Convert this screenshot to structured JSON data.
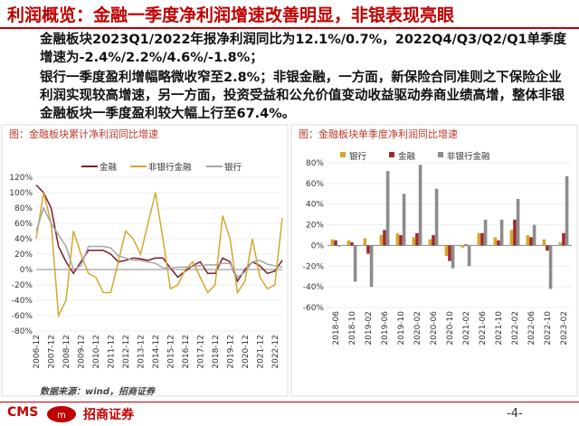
{
  "header": {
    "title": "利润概览：金融一季度净利润增速改善明显，非银表现亮眼"
  },
  "body": {
    "paragraphs": [
      "金融板块2023Q1/2022年报净利润同比为12.1%/0.7%，2022Q4/Q3/Q2/Q1单季度增速为-2.4%/2.2%/4.6%/-1.8%；",
      "银行一季度盈利增幅略微收窄至2.8%；非银金融，一方面，新保险合同准则之下保险企业利润实现较高增速，另一方面，投资受益和公允价值变动收益驱动券商业绩高增，整体非银金融板块一季度盈利较大幅上行至67.4%。"
    ]
  },
  "chart_data": [
    {
      "type": "line",
      "title": "图：金融板块累计净利润同比增速",
      "legend": "top",
      "categories": [
        "2006-12",
        null,
        "2007-12",
        null,
        "2008-12",
        null,
        "2009-12",
        null,
        "2010-12",
        null,
        "2011-12",
        null,
        "2012-12",
        null,
        "2013-12",
        null,
        "2014-12",
        null,
        "2015-12",
        null,
        "2016-12",
        null,
        "2017-12",
        null,
        "2018-12",
        null,
        "2019-12",
        null,
        "2020-12",
        null,
        "2021-12",
        null,
        "2022-12",
        null
      ],
      "series": [
        {
          "name": "金融",
          "color": "#7b1c2a",
          "values": [
            110,
            100,
            80,
            30,
            10,
            -5,
            10,
            25,
            25,
            25,
            20,
            10,
            12,
            15,
            14,
            12,
            15,
            15,
            2,
            -10,
            -2,
            5,
            10,
            -5,
            -5,
            15,
            10,
            -15,
            0,
            10,
            5,
            -5,
            -2,
            12
          ]
        },
        {
          "name": "非银行金融",
          "color": "#d4a72c",
          "values": [
            40,
            100,
            60,
            -60,
            -40,
            50,
            20,
            -5,
            -10,
            -30,
            -30,
            10,
            50,
            40,
            20,
            60,
            100,
            40,
            -25,
            -20,
            0,
            10,
            -10,
            -30,
            -20,
            70,
            40,
            -30,
            -15,
            40,
            -10,
            -25,
            -20,
            67
          ]
        },
        {
          "name": "银行",
          "color": "#a6a6a6",
          "values": [
            50,
            80,
            60,
            45,
            30,
            0,
            5,
            30,
            30,
            30,
            28,
            18,
            15,
            12,
            12,
            10,
            8,
            2,
            2,
            3,
            3,
            4,
            5,
            6,
            6,
            8,
            8,
            -10,
            -3,
            10,
            12,
            7,
            5,
            3
          ]
        }
      ],
      "ylim": [
        -80,
        120
      ],
      "yticks": [
        {
          "value": -80,
          "label": "-80%"
        },
        {
          "value": -60,
          "label": "-60%"
        },
        {
          "value": -40,
          "label": "-40%"
        },
        {
          "value": -20,
          "label": "-20%"
        },
        {
          "value": 0,
          "label": "0%"
        },
        {
          "value": 20,
          "label": "20%"
        },
        {
          "value": 40,
          "label": "40%"
        },
        {
          "value": 60,
          "label": "60%"
        },
        {
          "value": 80,
          "label": "80%"
        },
        {
          "value": 100,
          "label": "100%"
        },
        {
          "value": 120,
          "label": "120%"
        }
      ]
    },
    {
      "type": "bar",
      "title": "图：金融板块单季度净利润同比增速",
      "legend": "top-left",
      "categories": [
        "2018-06",
        "2018-10",
        "2019-02",
        "2019-06",
        "2019-10",
        "2020-02",
        "2020-06",
        "2020-10",
        "2021-02",
        "2021-06",
        "2021-10",
        "2022-02",
        "2022-06",
        "2022-10",
        "2023-02"
      ],
      "series": [
        {
          "name": "银行",
          "color": "#d4a72c",
          "values": [
            6,
            5,
            7,
            10,
            12,
            8,
            6,
            -10,
            -2,
            12,
            8,
            15,
            10,
            6,
            3
          ]
        },
        {
          "name": "金融",
          "color": "#a0282d",
          "values": [
            5,
            3,
            -8,
            15,
            10,
            12,
            10,
            -15,
            1,
            12,
            5,
            25,
            8,
            -5,
            12
          ]
        },
        {
          "name": "非银行金融",
          "color": "#8c8c8c",
          "values": [
            -1,
            -35,
            -40,
            72,
            50,
            78,
            55,
            -22,
            -20,
            25,
            25,
            45,
            20,
            -42,
            67
          ]
        }
      ],
      "ylim": [
        -60,
        80
      ],
      "yticks": [
        {
          "value": -60,
          "label": "-60%"
        },
        {
          "value": -40,
          "label": "-40%"
        },
        {
          "value": -20,
          "label": "-20%"
        },
        {
          "value": 0,
          "label": "0%"
        },
        {
          "value": 20,
          "label": "20%"
        },
        {
          "value": 40,
          "label": "40%"
        },
        {
          "value": 60,
          "label": "60%"
        },
        {
          "value": 80,
          "label": "80%"
        }
      ]
    }
  ],
  "source": "数据来源：wind，招商证券",
  "footer": {
    "logo": "CMS",
    "company": "招商证券",
    "page": "-4-"
  }
}
